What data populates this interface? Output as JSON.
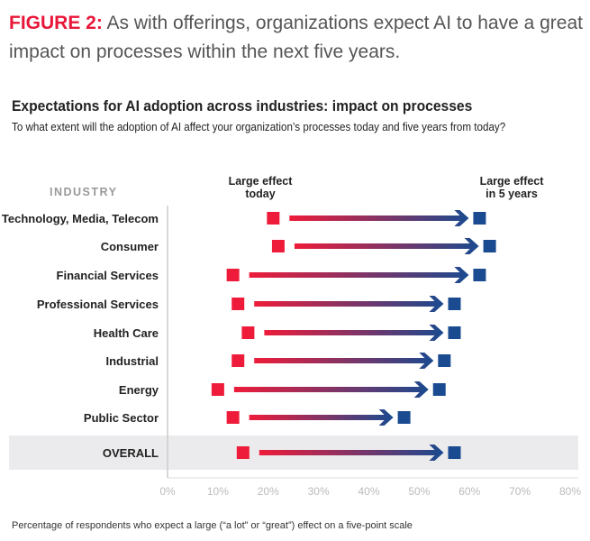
{
  "figure": {
    "label": "FIGURE 2:",
    "text": "As with offerings, organizations expect AI to have a great impact on processes within the next five years."
  },
  "chart_data": {
    "type": "dumbbell-arrow",
    "title": "Expectations for AI adoption across industries: impact on processes",
    "subtitle": "To what extent will the adoption of AI affect your organization’s processes today and five years from today?",
    "category_header": "INDUSTRY",
    "series": [
      {
        "name": "Large effect today",
        "color": "#ee1c3a"
      },
      {
        "name": "Large effect in 5 years",
        "color": "#1a4a8f"
      }
    ],
    "series_labels": [
      [
        "Large effect",
        "today"
      ],
      [
        "Large effect",
        "in 5 years"
      ]
    ],
    "categories": [
      "Technology, Media, Telecom",
      "Consumer",
      "Financial Services",
      "Professional Services",
      "Health Care",
      "Industrial",
      "Energy",
      "Public Sector",
      "OVERALL"
    ],
    "today": [
      21,
      22,
      13,
      14,
      16,
      14,
      10,
      13,
      15
    ],
    "five_years": [
      62,
      64,
      62,
      57,
      57,
      55,
      54,
      47,
      57
    ],
    "highlighted_category": "OVERALL",
    "xlim": [
      0,
      80
    ],
    "xticks": [
      "0%",
      "10%",
      "20%",
      "30%",
      "40%",
      "50%",
      "60%",
      "70%",
      "80%"
    ],
    "xunit": "%",
    "footnote": "Percentage of respondents who expect a large (“a lot” or “great”) effect on a five-point scale"
  }
}
